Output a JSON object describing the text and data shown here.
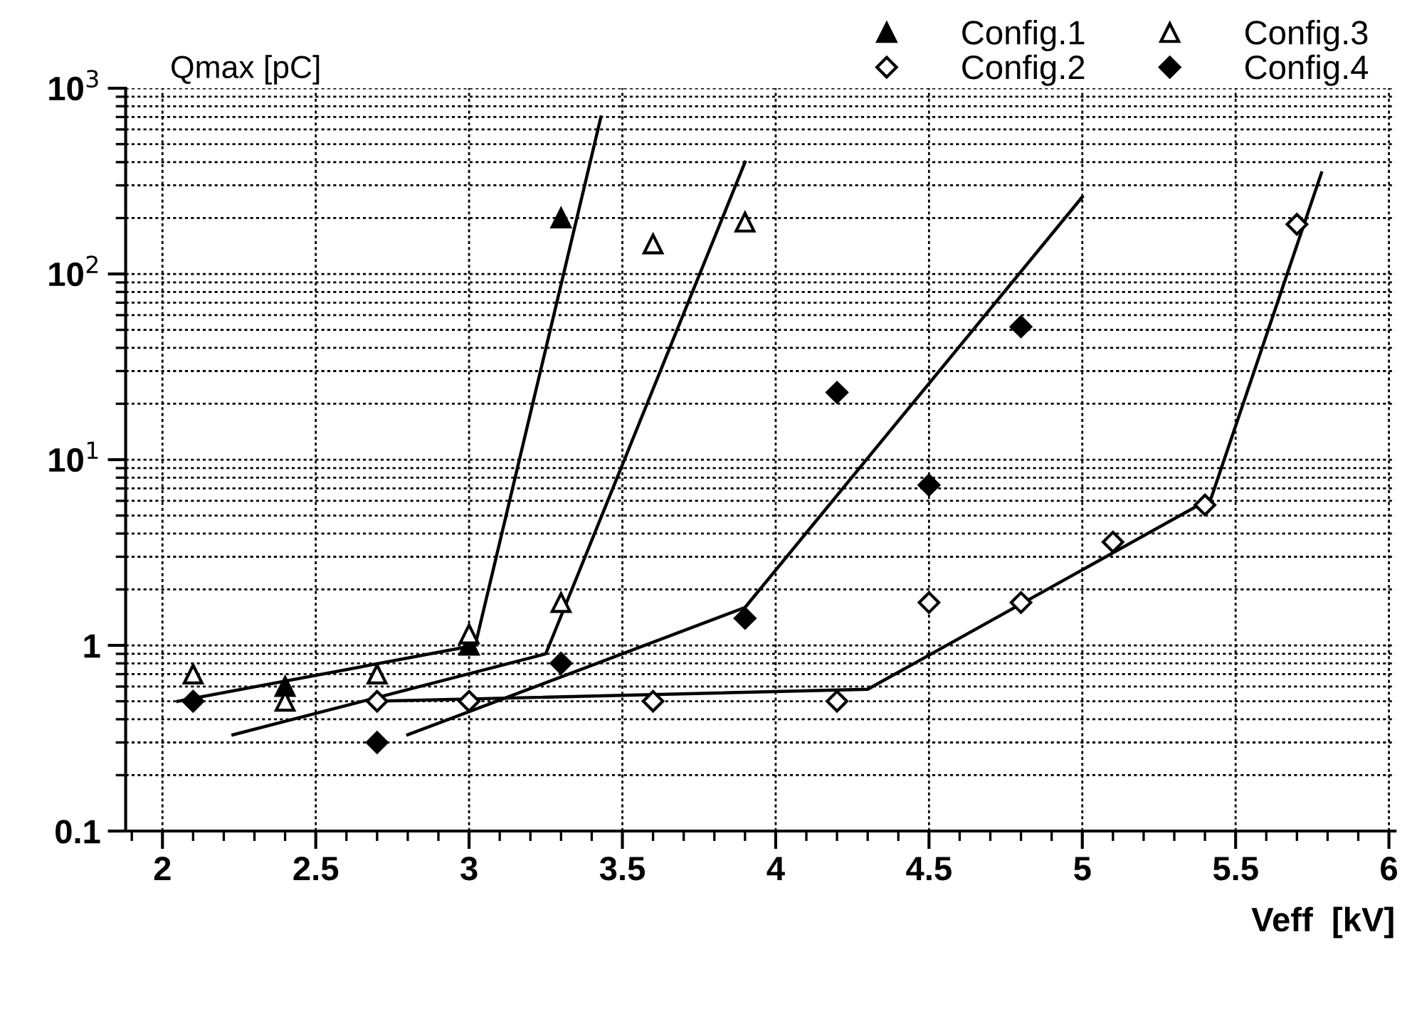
{
  "chart_data": {
    "type": "scatter",
    "xlabel": "Veff  [kV]",
    "ylabel": "Qmax [pC]",
    "log": "y",
    "grid": true,
    "legend": "top right",
    "xlim": [
      1.88,
      6.02
    ],
    "ylim": [
      0.1,
      1000
    ],
    "xticks": [
      2,
      2.5,
      3,
      3.5,
      4,
      4.5,
      5,
      5.5,
      6
    ],
    "yticks": [
      0.1,
      1,
      {
        "value": 10,
        "label": "10$^{1}$"
      },
      {
        "value": 100,
        "label": "10$^{2}$"
      },
      {
        "value": 1000,
        "label": "10$^{3}$"
      }
    ],
    "series": [
      {
        "name": "Config.1",
        "color": "#000000",
        "marker": "triangle",
        "x": [
          2.4,
          3.0,
          3.3
        ],
        "values": [
          0.6,
          1.0,
          200
        ]
      },
      {
        "name": "Config.2",
        "color": "#ffffff",
        "marker": "diamond",
        "x": [
          2.7,
          3.0,
          3.6,
          4.2,
          4.5,
          4.8,
          5.1,
          5.4,
          5.7
        ],
        "values": [
          0.5,
          0.5,
          0.5,
          0.5,
          1.7,
          1.7,
          3.6,
          5.7,
          185
        ]
      },
      {
        "name": "Config.3",
        "color": "#ffffff",
        "marker": "triangle",
        "x": [
          2.1,
          2.4,
          2.7,
          3.0,
          3.3,
          3.6,
          3.9
        ],
        "values": [
          0.7,
          0.5,
          0.7,
          1.15,
          1.7,
          145,
          190
        ]
      },
      {
        "name": "Config.4",
        "color": "#000000",
        "marker": "diamond",
        "x": [
          2.1,
          2.7,
          3.3,
          3.9,
          4.2,
          4.5,
          4.8
        ],
        "values": [
          0.5,
          0.3,
          0.8,
          1.4,
          23,
          7.3,
          52
        ]
      },
      {
        "type": "line",
        "color": "#000000",
        "marker": "none",
        "x": [
          2.05,
          3.02,
          3.43
        ],
        "values": [
          0.5,
          1.0,
          700
        ]
      },
      {
        "type": "line",
        "color": "#000000",
        "marker": "none",
        "x": [
          2.23,
          3.25,
          3.9
        ],
        "values": [
          0.33,
          0.9,
          400
        ]
      },
      {
        "type": "line",
        "color": "#000000",
        "marker": "none",
        "x": [
          2.8,
          3.9,
          5.0
        ],
        "values": [
          0.33,
          1.6,
          260
        ]
      },
      {
        "type": "line",
        "color": "#000000",
        "marker": "none",
        "x": [
          2.7,
          4.3,
          5.42,
          5.78
        ],
        "values": [
          0.5,
          0.58,
          6.2,
          350
        ]
      }
    ]
  }
}
